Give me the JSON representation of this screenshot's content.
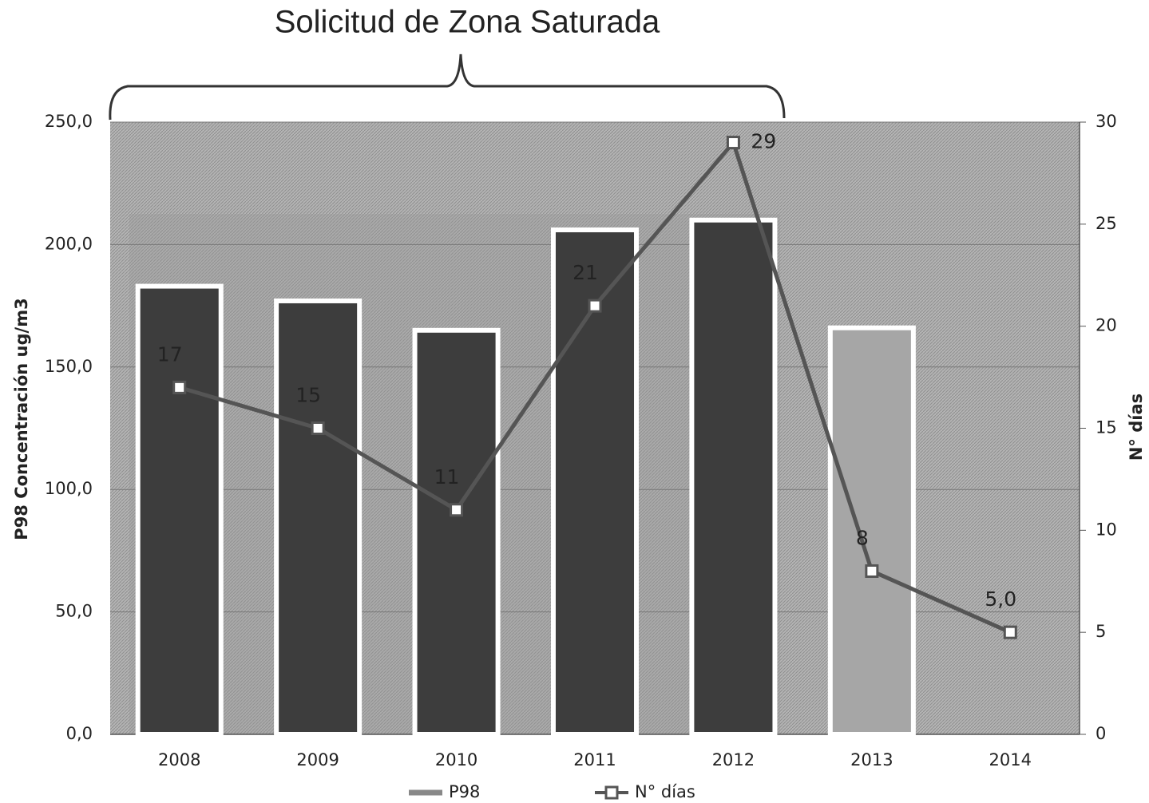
{
  "chart_data": {
    "type": "bar-line",
    "title": "Solicitud de Zona Saturada",
    "y_label": "P98   Concentración ug/m3",
    "y2_label": "N° días",
    "categories": [
      "2008",
      "2009",
      "2010",
      "2011",
      "2012",
      "2013",
      "2014"
    ],
    "series": [
      {
        "name": "P98",
        "type": "bar",
        "color": "#3d3d3d",
        "colors": [
          "#3d3d3d",
          "#3d3d3d",
          "#3d3d3d",
          "#3d3d3d",
          "#3d3d3d",
          "#a6a6a6",
          null
        ],
        "values": [
          183,
          177,
          165,
          206,
          210,
          166,
          null
        ]
      },
      {
        "name": "N° días",
        "type": "line",
        "axis": "y2",
        "color": "#555555",
        "values": [
          17,
          15,
          11,
          21,
          29,
          8,
          5
        ],
        "value_labels": [
          "17",
          "15",
          "11",
          "21",
          "29",
          "8",
          "5,0"
        ]
      }
    ],
    "ylim": [
      0,
      250
    ],
    "yticks": [
      {
        "value": 0,
        "label": "0,0"
      },
      {
        "value": 50,
        "label": "50,0"
      },
      {
        "value": 100,
        "label": "100,0"
      },
      {
        "value": 150,
        "label": "150,0"
      },
      {
        "value": 200,
        "label": "200,0"
      },
      {
        "value": 250,
        "label": "250,0"
      }
    ],
    "y2lim": [
      0,
      30
    ],
    "y2ticks": [
      0,
      5,
      10,
      15,
      20,
      25,
      30
    ],
    "grid": true,
    "legend": "bottom"
  }
}
